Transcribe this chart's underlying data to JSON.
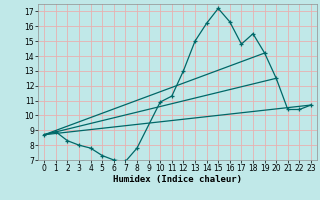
{
  "title": "",
  "xlabel": "Humidex (Indice chaleur)",
  "bg_color": "#c0e8e8",
  "grid_color": "#e8b0b0",
  "line_color": "#006868",
  "xlim": [
    -0.5,
    23.5
  ],
  "ylim": [
    7,
    17.5
  ],
  "xticks": [
    0,
    1,
    2,
    3,
    4,
    5,
    6,
    7,
    8,
    9,
    10,
    11,
    12,
    13,
    14,
    15,
    16,
    17,
    18,
    19,
    20,
    21,
    22,
    23
  ],
  "yticks": [
    7,
    8,
    9,
    10,
    11,
    12,
    13,
    14,
    15,
    16,
    17
  ],
  "line1_x": [
    0,
    1,
    2,
    3,
    4,
    5,
    6,
    7,
    8,
    10,
    11,
    12,
    13,
    14,
    15,
    16,
    17,
    18,
    19,
    20,
    21,
    22,
    23
  ],
  "line1_y": [
    8.7,
    8.9,
    8.3,
    8.0,
    7.8,
    7.3,
    7.0,
    6.9,
    7.8,
    10.9,
    11.3,
    13.0,
    15.0,
    16.2,
    17.2,
    16.3,
    14.8,
    15.5,
    14.2,
    12.5,
    10.4,
    10.4,
    10.7
  ],
  "line2_x": [
    0,
    19
  ],
  "line2_y": [
    8.7,
    14.2
  ],
  "line3_x": [
    0,
    23
  ],
  "line3_y": [
    8.7,
    10.7
  ],
  "line4_x": [
    0,
    20
  ],
  "line4_y": [
    8.7,
    12.5
  ]
}
